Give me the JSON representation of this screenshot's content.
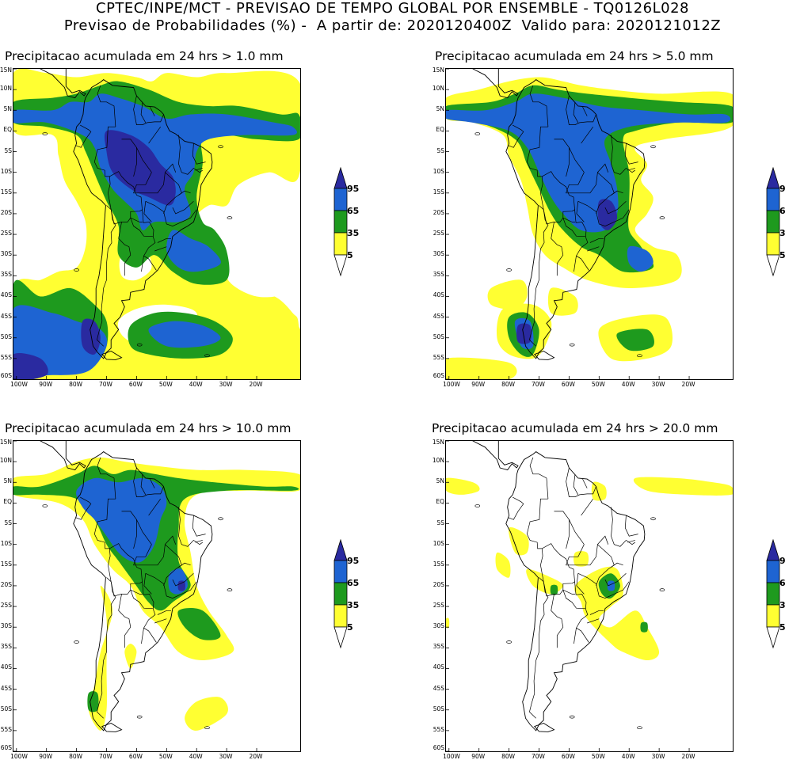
{
  "header": {
    "title_line1": "CPTEC/INPE/MCT - PREVISAO DE TEMPO GLOBAL POR ENSEMBLE - TQ0126L028",
    "title_line2": "Previsao de Probabilidades (%) -  A partir de: 2020120400Z  Valido para: 2020121012Z"
  },
  "axes": {
    "lat_labels": [
      "15N",
      "10N",
      "5N",
      "EQ",
      "5S",
      "10S",
      "15S",
      "20S",
      "25S",
      "30S",
      "35S",
      "40S",
      "45S",
      "50S",
      "55S",
      "60S"
    ],
    "lon_labels": [
      "100W",
      "90W",
      "80W",
      "70W",
      "60W",
      "50W",
      "40W",
      "30W",
      "20W"
    ]
  },
  "legend": {
    "levels": [
      "95",
      "65",
      "35",
      "5"
    ],
    "colors": {
      "c95": "#2a2aa0",
      "c65": "#1e64d2",
      "c35": "#1e9a1e",
      "c5": "#ffff32",
      "cBelow": "#ffffff"
    }
  },
  "panels": [
    {
      "title": "Precipitacao acumulada em 24 hrs > 1.0 mm"
    },
    {
      "title": "Precipitacao acumulada em 24 hrs > 5.0 mm"
    },
    {
      "title": "Precipitacao acumulada em 24 hrs > 10.0 mm"
    },
    {
      "title": "Precipitacao acumulada em 24 hrs > 20.0 mm"
    }
  ]
}
